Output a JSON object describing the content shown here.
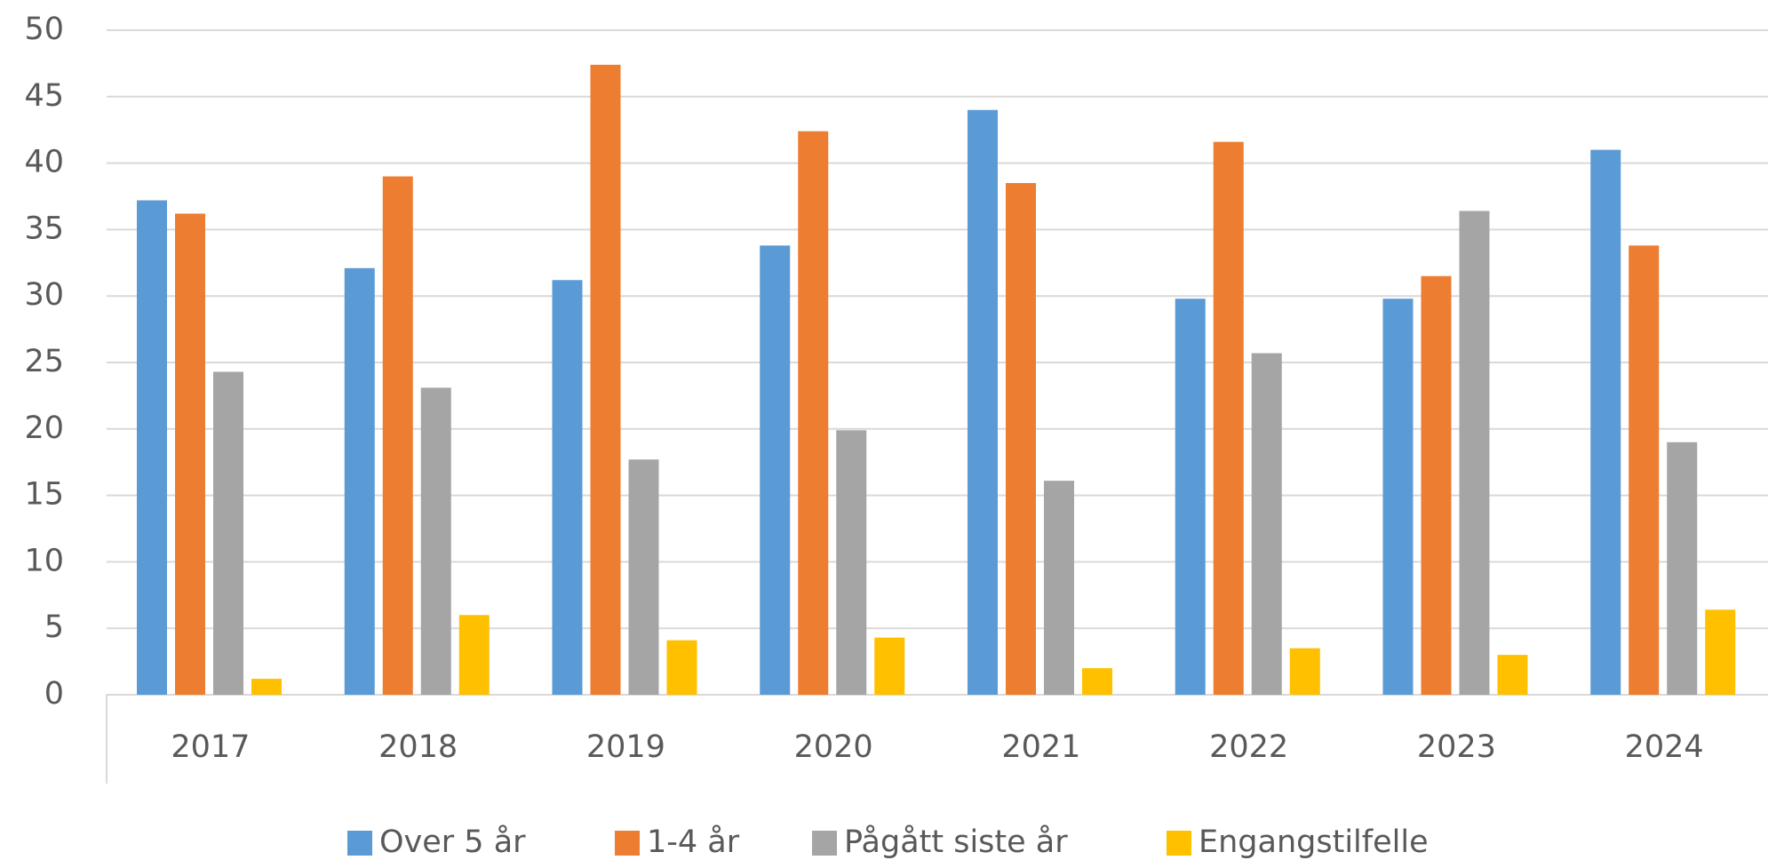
{
  "chart_data": {
    "type": "bar",
    "categories": [
      "2017",
      "2018",
      "2019",
      "2020",
      "2021",
      "2022",
      "2023",
      "2024"
    ],
    "series": [
      {
        "name": "Over 5 år",
        "color": "#5b9bd5",
        "values": [
          37.2,
          32.1,
          31.2,
          33.8,
          44.0,
          29.8,
          29.8,
          41.0
        ]
      },
      {
        "name": "1-4 år",
        "color": "#ed7d31",
        "values": [
          36.2,
          39.0,
          47.4,
          42.4,
          38.5,
          41.6,
          31.5,
          33.8
        ]
      },
      {
        "name": "Pågått siste år",
        "color": "#a5a5a5",
        "values": [
          24.3,
          23.1,
          17.7,
          19.9,
          16.1,
          25.7,
          36.4,
          19.0
        ]
      },
      {
        "name": "Engangstilfelle",
        "color": "#ffc000",
        "values": [
          1.2,
          6.0,
          4.1,
          4.3,
          2.0,
          3.5,
          3.0,
          6.4
        ]
      }
    ],
    "ylim": [
      0,
      50
    ],
    "yticks": [
      0,
      5,
      10,
      15,
      20,
      25,
      30,
      35,
      40,
      45,
      50
    ],
    "grid": true,
    "legend": "bottom"
  }
}
